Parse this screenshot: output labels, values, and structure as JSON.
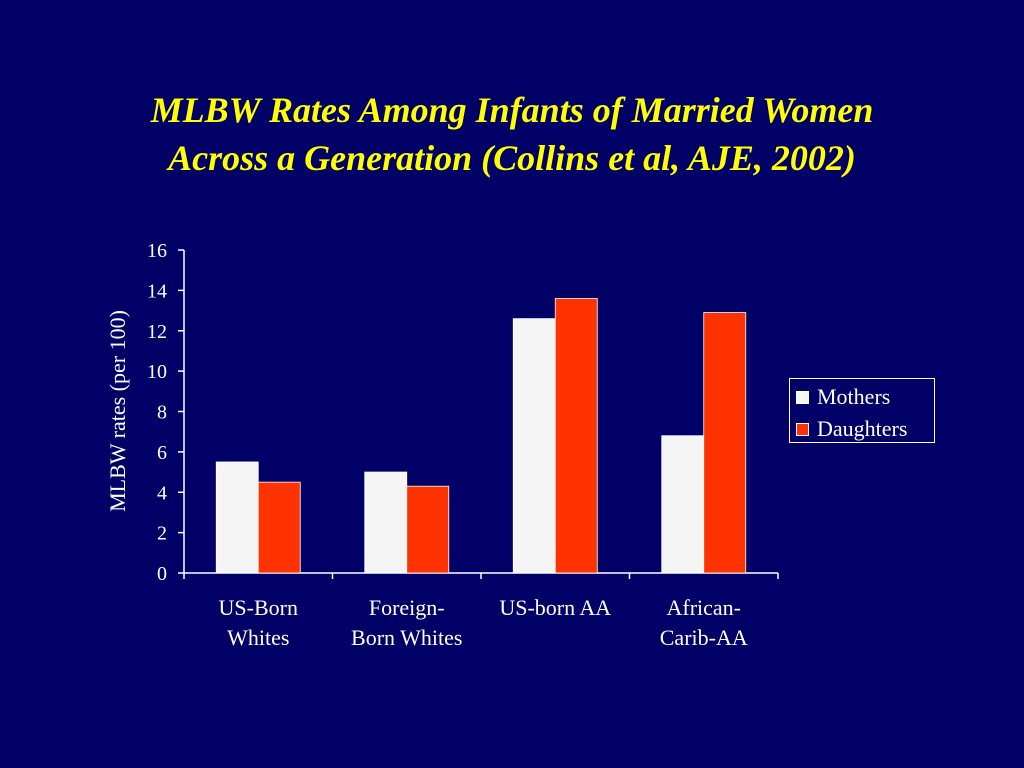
{
  "slide": {
    "title_line1": "MLBW Rates Among Infants of Married Women",
    "title_line2": "Across a Generation (Collins et al, AJE, 2002)"
  },
  "chart_data": {
    "type": "bar",
    "title": "",
    "xlabel": "",
    "ylabel": "MLBW rates (per 100)",
    "categories": [
      [
        "US-Born",
        "Whites"
      ],
      [
        "Foreign-",
        "Born Whites"
      ],
      [
        "US-born AA"
      ],
      [
        "African-",
        "Carib-AA"
      ]
    ],
    "series": [
      {
        "name": "Mothers",
        "color": "#F5F5F5",
        "values": [
          5.5,
          5.0,
          12.6,
          6.8
        ]
      },
      {
        "name": "Daughters",
        "color": "#FF3300",
        "values": [
          4.5,
          4.3,
          13.6,
          12.9
        ]
      }
    ],
    "ylim": [
      0,
      16
    ],
    "yticks": [
      "0",
      "2",
      "4",
      "6",
      "8",
      "10",
      "12",
      "14",
      "16"
    ],
    "grid": false,
    "legend_position": "right"
  }
}
